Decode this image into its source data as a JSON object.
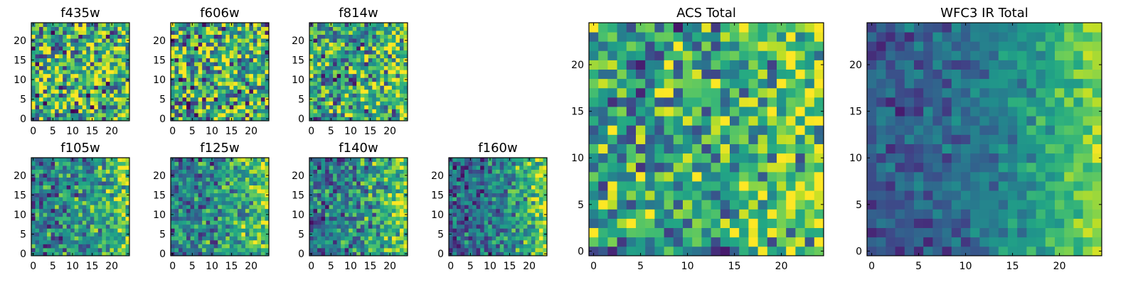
{
  "chart_data": [
    {
      "type": "heatmap",
      "title": "f435w",
      "x_ticks": [
        "0",
        "5",
        "10",
        "15",
        "20"
      ],
      "y_ticks": [
        "0",
        "5",
        "10",
        "15",
        "20"
      ],
      "xlim": [
        -0.5,
        24.5
      ],
      "ylim": [
        -0.5,
        24.5
      ],
      "grid_size": [
        25,
        25
      ],
      "colormap": "viridis",
      "grid": false,
      "seed": 11,
      "gradient": 0.05,
      "noise": 0.7,
      "bias": 0.62
    },
    {
      "type": "heatmap",
      "title": "f606w",
      "x_ticks": [
        "0",
        "5",
        "10",
        "15",
        "20"
      ],
      "y_ticks": [
        "0",
        "5",
        "10",
        "15",
        "20"
      ],
      "xlim": [
        -0.5,
        24.5
      ],
      "ylim": [
        -0.5,
        24.5
      ],
      "grid_size": [
        25,
        25
      ],
      "colormap": "viridis",
      "grid": false,
      "seed": 23,
      "gradient": 0.05,
      "noise": 0.7,
      "bias": 0.6
    },
    {
      "type": "heatmap",
      "title": "f814w",
      "x_ticks": [
        "0",
        "5",
        "10",
        "15",
        "20"
      ],
      "y_ticks": [
        "0",
        "5",
        "10",
        "15",
        "20"
      ],
      "xlim": [
        -0.5,
        24.5
      ],
      "ylim": [
        -0.5,
        24.5
      ],
      "grid_size": [
        25,
        25
      ],
      "colormap": "viridis",
      "grid": false,
      "seed": 37,
      "gradient": 0.2,
      "noise": 0.6,
      "bias": 0.55
    },
    {
      "type": "heatmap",
      "title": "f105w",
      "x_ticks": [
        "0",
        "5",
        "10",
        "15",
        "20"
      ],
      "y_ticks": [
        "0",
        "5",
        "10",
        "15",
        "20"
      ],
      "xlim": [
        -0.5,
        24.5
      ],
      "ylim": [
        -0.5,
        24.5
      ],
      "grid_size": [
        25,
        25
      ],
      "colormap": "viridis",
      "grid": false,
      "seed": 41,
      "gradient": 0.35,
      "noise": 0.45,
      "bias": 0.42
    },
    {
      "type": "heatmap",
      "title": "f125w",
      "x_ticks": [
        "0",
        "5",
        "10",
        "15",
        "20"
      ],
      "y_ticks": [
        "0",
        "5",
        "10",
        "15",
        "20"
      ],
      "xlim": [
        -0.5,
        24.5
      ],
      "ylim": [
        -0.5,
        24.5
      ],
      "grid_size": [
        25,
        25
      ],
      "colormap": "viridis",
      "grid": false,
      "seed": 53,
      "gradient": 0.4,
      "noise": 0.45,
      "bias": 0.42
    },
    {
      "type": "heatmap",
      "title": "f140w",
      "x_ticks": [
        "0",
        "5",
        "10",
        "15",
        "20"
      ],
      "y_ticks": [
        "0",
        "5",
        "10",
        "15",
        "20"
      ],
      "xlim": [
        -0.5,
        24.5
      ],
      "ylim": [
        -0.5,
        24.5
      ],
      "grid_size": [
        25,
        25
      ],
      "colormap": "viridis",
      "grid": false,
      "seed": 67,
      "gradient": 0.42,
      "noise": 0.42,
      "bias": 0.4
    },
    {
      "type": "heatmap",
      "title": "f160w",
      "x_ticks": [
        "0",
        "5",
        "10",
        "15",
        "20"
      ],
      "y_ticks": [
        "0",
        "5",
        "10",
        "15",
        "20"
      ],
      "xlim": [
        -0.5,
        24.5
      ],
      "ylim": [
        -0.5,
        24.5
      ],
      "grid_size": [
        25,
        25
      ],
      "colormap": "viridis",
      "grid": false,
      "seed": 79,
      "gradient": 0.5,
      "noise": 0.4,
      "bias": 0.32
    },
    {
      "type": "heatmap",
      "title": "ACS Total",
      "x_ticks": [
        "0",
        "5",
        "10",
        "15",
        "20"
      ],
      "y_ticks": [
        "0",
        "5",
        "10",
        "15",
        "20"
      ],
      "xlim": [
        -0.5,
        24.5
      ],
      "ylim": [
        -0.5,
        24.5
      ],
      "grid_size": [
        25,
        25
      ],
      "colormap": "viridis",
      "grid": false,
      "seed": 97,
      "gradient": 0.18,
      "noise": 0.55,
      "bias": 0.56
    },
    {
      "type": "heatmap",
      "title": "WFC3 IR Total",
      "x_ticks": [
        "0",
        "5",
        "10",
        "15",
        "20"
      ],
      "y_ticks": [
        "0",
        "5",
        "10",
        "15",
        "20"
      ],
      "xlim": [
        -0.5,
        24.5
      ],
      "ylim": [
        -0.5,
        24.5
      ],
      "grid_size": [
        25,
        25
      ],
      "colormap": "viridis",
      "grid": false,
      "seed": 113,
      "gradient": 0.55,
      "noise": 0.22,
      "bias": 0.28
    }
  ]
}
